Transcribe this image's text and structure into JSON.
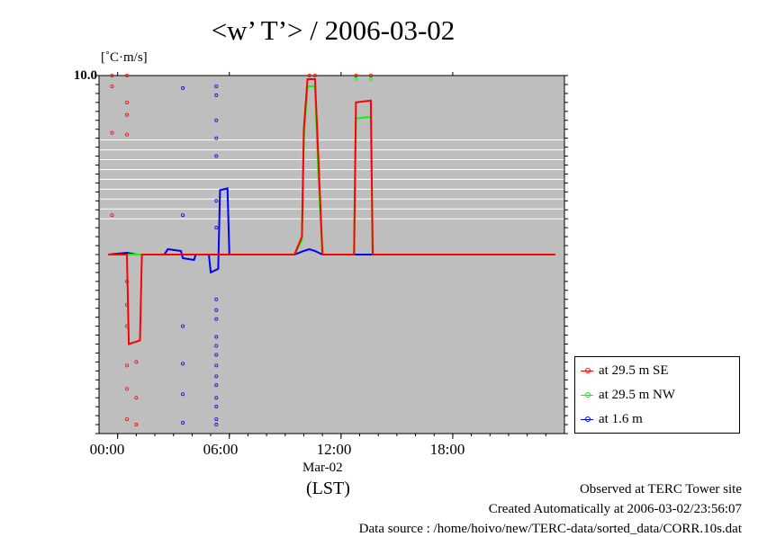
{
  "title": "<w’ T’> / 2006-03-02",
  "unit_label": "[˚C·m/s]",
  "x_date_label": "Mar-02",
  "x_axis_label": "(LST)",
  "footer": {
    "line1": "Observed at TERC Tower site",
    "line2": "Created Automatically at 2006-03-02/23:56:07",
    "line3": "Data source : /home/hoivo/new/TERC-data/sorted_data/CORR.10s.dat"
  },
  "colors": {
    "plot_bg": "#bebebe",
    "series_se": "#ff0000",
    "series_nw": "#00ff00",
    "series_low": "#0000ff"
  },
  "chart_data": {
    "type": "line",
    "x_unit": "hour (LST)",
    "xlim": [
      -1,
      24
    ],
    "ylim": [
      -10,
      10
    ],
    "x_ticks": [
      "00:00",
      "06:00",
      "12:00",
      "18:00"
    ],
    "y_top_label": "10.0",
    "grid": "horizontal lines in upper part of plot",
    "legend_position": "bottom-right, outside plot",
    "series": [
      {
        "name": "at 29.5 m SE",
        "color": "#ff0000",
        "points": [
          [
            -0.5,
            0.0
          ],
          [
            0.5,
            0.0
          ],
          [
            0.6,
            -5.0
          ],
          [
            1.2,
            -4.8
          ],
          [
            1.3,
            0.0
          ],
          [
            9.5,
            0.0
          ],
          [
            9.9,
            1.0
          ],
          [
            10.0,
            7.0
          ],
          [
            10.2,
            9.8
          ],
          [
            10.6,
            9.8
          ],
          [
            10.8,
            5.0
          ],
          [
            11.0,
            0.0
          ],
          [
            12.7,
            0.0
          ],
          [
            12.8,
            8.5
          ],
          [
            13.6,
            8.6
          ],
          [
            13.7,
            0.0
          ],
          [
            23.5,
            0.0
          ]
        ]
      },
      {
        "name": "at 29.5 m NW",
        "color": "#00ff00",
        "points": [
          [
            -0.5,
            0.0
          ],
          [
            9.5,
            0.0
          ],
          [
            9.9,
            0.8
          ],
          [
            10.0,
            6.5
          ],
          [
            10.2,
            9.4
          ],
          [
            10.6,
            9.4
          ],
          [
            10.8,
            4.0
          ],
          [
            11.0,
            0.0
          ],
          [
            12.7,
            0.0
          ],
          [
            12.8,
            7.6
          ],
          [
            13.6,
            7.7
          ],
          [
            13.7,
            0.0
          ],
          [
            23.5,
            0.0
          ]
        ]
      },
      {
        "name": "at 1.6 m",
        "color": "#0000ff",
        "points": [
          [
            -0.5,
            0.0
          ],
          [
            0.5,
            0.1
          ],
          [
            1.0,
            0.0
          ],
          [
            2.5,
            0.0
          ],
          [
            2.7,
            0.3
          ],
          [
            3.4,
            0.2
          ],
          [
            3.5,
            -0.2
          ],
          [
            4.1,
            -0.3
          ],
          [
            4.2,
            0.0
          ],
          [
            4.9,
            0.0
          ],
          [
            5.0,
            -1.0
          ],
          [
            5.4,
            -0.8
          ],
          [
            5.5,
            3.6
          ],
          [
            5.9,
            3.7
          ],
          [
            6.0,
            0.0
          ],
          [
            9.5,
            0.0
          ],
          [
            10.0,
            0.2
          ],
          [
            10.3,
            0.3
          ],
          [
            10.6,
            0.2
          ],
          [
            11.0,
            0.0
          ],
          [
            23.5,
            0.0
          ]
        ]
      }
    ],
    "scatter_points": {
      "at 29.5 m SE": [
        [
          -0.3,
          10
        ],
        [
          -0.3,
          9.4
        ],
        [
          -0.3,
          6.8
        ],
        [
          -0.3,
          2.2
        ],
        [
          0.5,
          10
        ],
        [
          0.5,
          8.5
        ],
        [
          0.5,
          7.8
        ],
        [
          0.5,
          6.7
        ],
        [
          0.5,
          -1.5
        ],
        [
          0.5,
          -2.8
        ],
        [
          0.5,
          -4.0
        ],
        [
          0.5,
          -6.2
        ],
        [
          0.5,
          -7.5
        ],
        [
          0.5,
          -9.2
        ],
        [
          1.0,
          -6.0
        ],
        [
          1.0,
          -8.0
        ],
        [
          1.0,
          -9.5
        ],
        [
          10.3,
          10
        ],
        [
          10.6,
          10
        ],
        [
          12.8,
          10
        ],
        [
          13.6,
          10
        ]
      ],
      "at 1.6 m": [
        [
          3.5,
          9.3
        ],
        [
          3.5,
          2.2
        ],
        [
          3.5,
          -4.0
        ],
        [
          3.5,
          -6.1
        ],
        [
          3.5,
          -7.8
        ],
        [
          3.5,
          -9.4
        ],
        [
          5.3,
          9.4
        ],
        [
          5.3,
          8.9
        ],
        [
          5.3,
          7.5
        ],
        [
          5.3,
          6.5
        ],
        [
          5.3,
          5.5
        ],
        [
          5.3,
          3.0
        ],
        [
          5.3,
          1.5
        ],
        [
          5.3,
          -2.5
        ],
        [
          5.3,
          -3.1
        ],
        [
          5.3,
          -3.6
        ],
        [
          5.3,
          -4.6
        ],
        [
          5.3,
          -5.1
        ],
        [
          5.3,
          -5.6
        ],
        [
          5.3,
          -6.2
        ],
        [
          5.3,
          -6.8
        ],
        [
          5.3,
          -7.3
        ],
        [
          5.3,
          -8.0
        ],
        [
          5.3,
          -8.5
        ],
        [
          5.3,
          -9.2
        ],
        [
          5.3,
          -9.5
        ]
      ],
      "at 29.5 m NW": [
        [
          12.8,
          9.8
        ],
        [
          13.6,
          9.8
        ]
      ]
    }
  }
}
